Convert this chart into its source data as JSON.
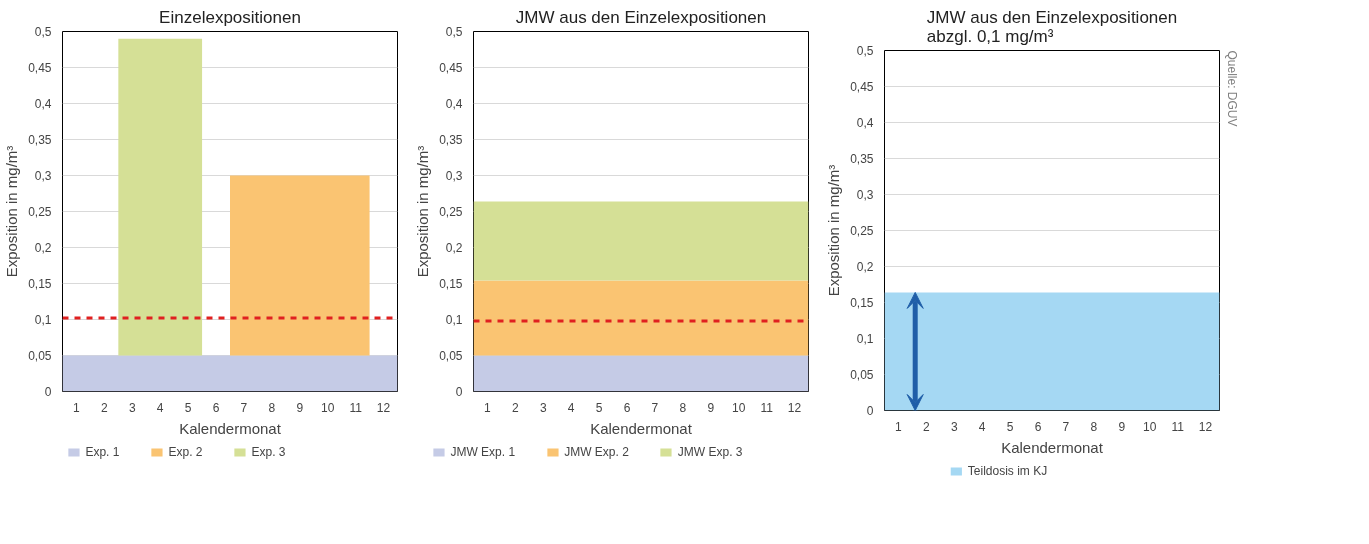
{
  "chart_data": [
    {
      "type": "area",
      "title": "Einzelexpositionen",
      "xlabel": "Kalendermonat",
      "ylabel": "Exposition in mg/m³",
      "stacked": true,
      "series": [
        {
          "name": "Exp. 1",
          "color": "#c5cbe6",
          "x": [
            0.5,
            2.5,
            2.5,
            5.5,
            5.5,
            6.5,
            6.5,
            11.5,
            11.5,
            12.5
          ],
          "values": [
            0.05,
            0.05,
            0.05,
            0.05,
            0.05,
            0.05,
            0.05,
            0.05,
            0.05,
            0.05
          ]
        },
        {
          "name": "Exp. 2",
          "color": "#fac472",
          "x": [
            0.5,
            2.5,
            2.5,
            5.5,
            5.5,
            6.5,
            6.5,
            11.5,
            11.5,
            12.5
          ],
          "values": [
            0,
            0,
            0,
            0,
            0,
            0,
            0.25,
            0.25,
            0,
            0
          ]
        },
        {
          "name": "Exp. 3",
          "color": "#d5e096",
          "x": [
            0.5,
            2.5,
            2.5,
            5.5,
            5.5,
            6.5,
            6.5,
            11.5,
            11.5,
            12.5
          ],
          "values": [
            0,
            0,
            0.44,
            0.44,
            0,
            0,
            0,
            0,
            0,
            0
          ]
        }
      ],
      "xlim": [
        0.5,
        12.5
      ],
      "xticks": [
        1,
        2,
        3,
        4,
        5,
        6,
        7,
        8,
        9,
        10,
        11,
        12
      ],
      "ylim": [
        0,
        0.5
      ],
      "yticks": [
        0,
        {
          "value": 0.05,
          "label": "0,05"
        },
        {
          "value": 0.1,
          "label": "0,1"
        },
        {
          "value": 0.15,
          "label": "0,15"
        },
        {
          "value": 0.2,
          "label": "0,2"
        },
        {
          "value": 0.25,
          "label": "0,25"
        },
        {
          "value": 0.3,
          "label": "0,3"
        },
        {
          "value": 0.35,
          "label": "0,35"
        },
        {
          "value": 0.4,
          "label": "0,4"
        },
        {
          "value": 0.45,
          "label": "0,45"
        },
        {
          "value": 0.5,
          "label": "0,5"
        }
      ],
      "ref_lines": [
        {
          "axis": "y",
          "value": 0.102,
          "color": "#e02020",
          "line_style": "dashed"
        }
      ],
      "grid": "y",
      "legend": "bottom"
    },
    {
      "type": "area",
      "title": "JMW aus den Einzelexpositionen",
      "xlabel": "Kalendermonat",
      "ylabel": "Exposition in mg/m³",
      "stacked": true,
      "series": [
        {
          "name": "JMW Exp. 1",
          "color": "#c5cbe6",
          "x": [
            0.5,
            12.5
          ],
          "values": [
            0.05,
            0.05
          ]
        },
        {
          "name": "JMW Exp. 2",
          "color": "#fac472",
          "x": [
            0.5,
            12.5
          ],
          "values": [
            0.104,
            0.104
          ]
        },
        {
          "name": "JMW Exp. 3",
          "color": "#d5e096",
          "x": [
            0.5,
            12.5
          ],
          "values": [
            0.11,
            0.11
          ]
        }
      ],
      "xlim": [
        0.5,
        12.5
      ],
      "xticks": [
        1,
        2,
        3,
        4,
        5,
        6,
        7,
        8,
        9,
        10,
        11,
        12
      ],
      "ylim": [
        0,
        0.5
      ],
      "yticks": [
        0,
        {
          "value": 0.05,
          "label": "0,05"
        },
        {
          "value": 0.1,
          "label": "0,1"
        },
        {
          "value": 0.15,
          "label": "0,15"
        },
        {
          "value": 0.2,
          "label": "0,2"
        },
        {
          "value": 0.25,
          "label": "0,25"
        },
        {
          "value": 0.3,
          "label": "0,3"
        },
        {
          "value": 0.35,
          "label": "0,35"
        },
        {
          "value": 0.4,
          "label": "0,4"
        },
        {
          "value": 0.45,
          "label": "0,45"
        },
        {
          "value": 0.5,
          "label": "0,5"
        }
      ],
      "ref_lines": [
        {
          "axis": "y",
          "value": 0.098,
          "color": "#e02020",
          "line_style": "dashed"
        }
      ],
      "grid": "y",
      "legend": "bottom"
    },
    {
      "type": "area",
      "title": "JMW aus den Einzelexpositionen\nabzgl. 0,1 mg/m³",
      "xlabel": "Kalendermonat",
      "ylabel": "Exposition in mg/m³",
      "series": [
        {
          "name": "Teildosis im KJ",
          "color": "#a5d8f3",
          "x": [
            0.5,
            12.5
          ],
          "values": [
            0.164,
            0.164
          ]
        }
      ],
      "xlim": [
        0.5,
        12.5
      ],
      "xticks": [
        1,
        2,
        3,
        4,
        5,
        6,
        7,
        8,
        9,
        10,
        11,
        12
      ],
      "ylim": [
        0,
        0.5
      ],
      "yticks": [
        0,
        {
          "value": 0.05,
          "label": "0,05"
        },
        {
          "value": 0.1,
          "label": "0,1"
        },
        {
          "value": 0.15,
          "label": "0,15"
        },
        {
          "value": 0.2,
          "label": "0,2"
        },
        {
          "value": 0.25,
          "label": "0,25"
        },
        {
          "value": 0.3,
          "label": "0,3"
        },
        {
          "value": 0.35,
          "label": "0,35"
        },
        {
          "value": 0.4,
          "label": "0,4"
        },
        {
          "value": 0.45,
          "label": "0,45"
        },
        {
          "value": 0.5,
          "label": "0,5"
        }
      ],
      "annotations": [
        "Quelle: DGUV"
      ],
      "grid": "y",
      "legend": "bottom"
    }
  ]
}
